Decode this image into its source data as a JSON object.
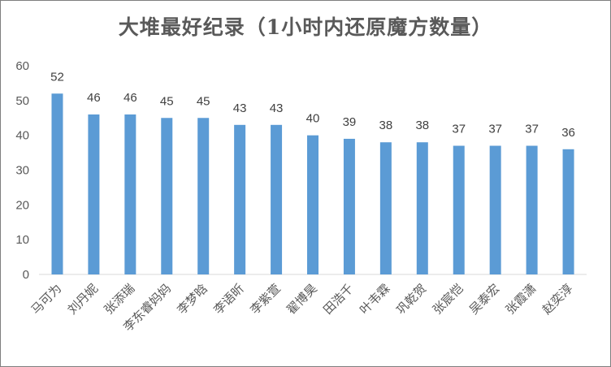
{
  "chart_data": {
    "type": "bar",
    "title": "大堆最好纪录（1小时内还原魔方数量）",
    "xlabel": "",
    "ylabel": "",
    "ylim": [
      0,
      60
    ],
    "yticks": [
      0,
      10,
      20,
      30,
      40,
      50,
      60
    ],
    "grid": false,
    "bar_color": "#5b9bd5",
    "categories": [
      "马可为",
      "刘丹妮",
      "张添瑞",
      "李东睿妈妈",
      "李梦晗",
      "李语昕",
      "李紫萱",
      "翟博昊",
      "田浩千",
      "叶韦霖",
      "巩乾贺",
      "张宸恺",
      "吴泰宏",
      "张霞潇",
      "赵奕淳"
    ],
    "values": [
      52,
      46,
      46,
      45,
      45,
      43,
      43,
      40,
      39,
      38,
      38,
      37,
      37,
      37,
      36
    ]
  }
}
